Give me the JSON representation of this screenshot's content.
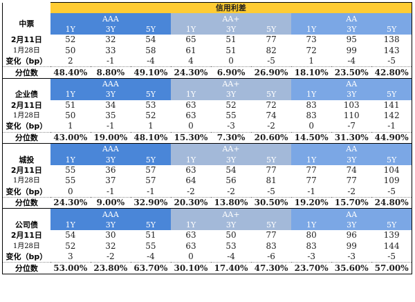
{
  "title": "信用利差",
  "grades": [
    "AAA",
    "AA+",
    "AA"
  ],
  "tenors": [
    "1Y",
    "3Y",
    "5Y"
  ],
  "row_labels": {
    "date1": "2月11日",
    "date2": "1月28日",
    "change": "变化（bp）",
    "pct": "分位数"
  },
  "sections": [
    {
      "name": "中票",
      "date1": [
        "52",
        "32",
        "54",
        "65",
        "51",
        "77",
        "73",
        "95",
        "138"
      ],
      "date2": [
        "50",
        "33",
        "58",
        "61",
        "51",
        "82",
        "72",
        "99",
        "143"
      ],
      "change": [
        "2",
        "-1",
        "-4",
        "4",
        "0",
        "-5",
        "1",
        "-4",
        "-5"
      ],
      "pct": [
        "48.40%",
        "8.80%",
        "49.10%",
        "24.30%",
        "6.90%",
        "26.90%",
        "18.10%",
        "23.50%",
        "42.80%"
      ]
    },
    {
      "name": "企业债",
      "date1": [
        "51",
        "34",
        "53",
        "63",
        "52",
        "72",
        "83",
        "103",
        "141"
      ],
      "date2": [
        "50",
        "35",
        "52",
        "63",
        "55",
        "74",
        "83",
        "110",
        "142"
      ],
      "change": [
        "1",
        "-1",
        "1",
        "0",
        "-3",
        "-2",
        "0",
        "-7",
        "-1"
      ],
      "pct": [
        "43.00%",
        "19.00%",
        "48.10%",
        "15.30%",
        "7.30%",
        "20.60%",
        "14.50%",
        "31.30%",
        "44.90%"
      ]
    },
    {
      "name": "城投",
      "date1": [
        "55",
        "36",
        "57",
        "63",
        "54",
        "77",
        "77",
        "74",
        "104"
      ],
      "date2": [
        "55",
        "37",
        "57",
        "64",
        "56",
        "81",
        "77",
        "77",
        "109"
      ],
      "change": [
        "0",
        "-1",
        "-1",
        "-2",
        "-2",
        "-5",
        "-1",
        "-2",
        "-5"
      ],
      "pct": [
        "24.30%",
        "9.00%",
        "32.90%",
        "20.30%",
        "13.80%",
        "30.50%",
        "19.20%",
        "15.70%",
        "24.80%"
      ]
    },
    {
      "name": "公司债",
      "date1": [
        "54",
        "30",
        "51",
        "63",
        "50",
        "77",
        "80",
        "96",
        "139"
      ],
      "date2": [
        "52",
        "32",
        "55",
        "63",
        "53",
        "83",
        "83",
        "99",
        "144"
      ],
      "change": [
        "3",
        "-2",
        "-4",
        "0",
        "-4",
        "-6",
        "-3",
        "-3",
        "-5"
      ],
      "pct": [
        "53.00%",
        "23.80%",
        "63.70%",
        "30.10%",
        "17.40%",
        "47.30%",
        "23.70%",
        "35.60%",
        "57.00%"
      ]
    }
  ]
}
